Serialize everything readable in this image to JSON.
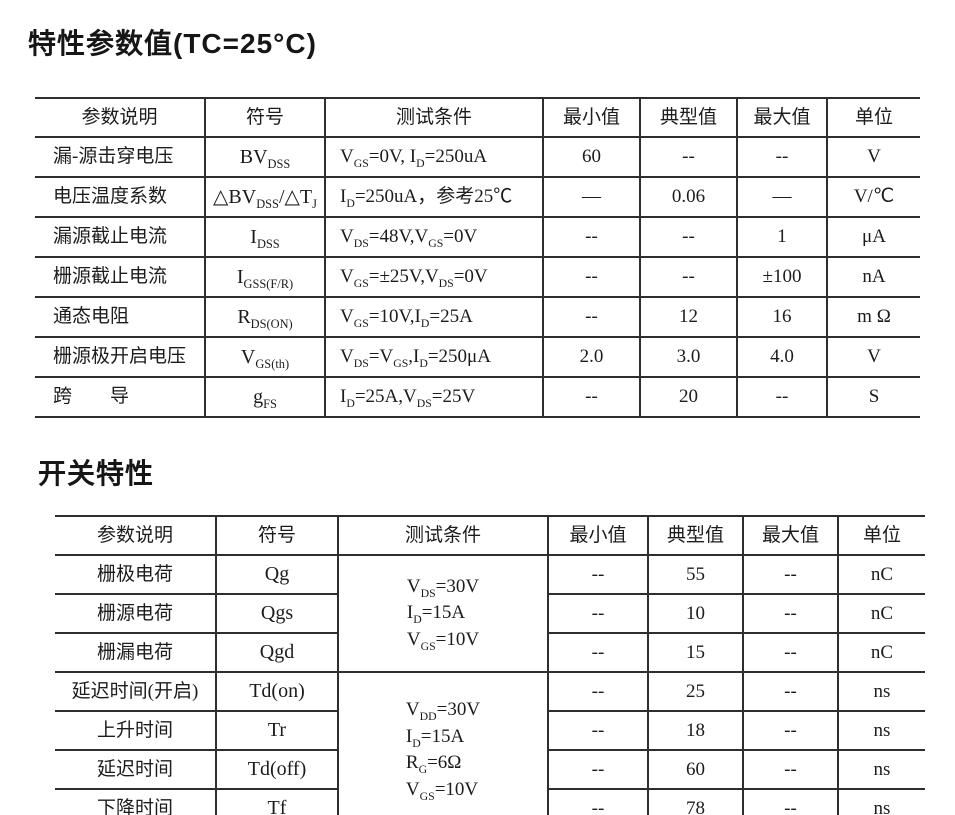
{
  "page": {
    "background": "#ffffff",
    "text_color": "#1c1c1c",
    "border_color": "#2e2e2e"
  },
  "tables": [
    {
      "id": "characteristics",
      "title": "特性参数值(TC=25°C)",
      "headers": [
        "参数说明",
        "符号",
        "测试条件",
        "最小值",
        "典型值",
        "最大值",
        "单位"
      ],
      "rows": [
        {
          "param": "漏-源击穿电压",
          "symbol": "BV~DSS~",
          "condition": "V~GS~=0V, I~D~=250uA",
          "condition_rowspan": 1,
          "min": "60",
          "typ": "--",
          "max": "--",
          "unit": "V"
        },
        {
          "param": "电压温度系数",
          "symbol": "△BV~DSS~/△T~J~",
          "condition": "I~D~=250uA，参考25℃",
          "condition_rowspan": 1,
          "min": "—",
          "typ": "0.06",
          "max": "—",
          "unit": "V/℃"
        },
        {
          "param": "漏源截止电流",
          "symbol": "I~DSS~",
          "condition": "V~DS~=48V,V~GS~=0V",
          "condition_rowspan": 1,
          "min": "--",
          "typ": "--",
          "max": "1",
          "unit": "μA"
        },
        {
          "param": "栅源截止电流",
          "symbol": "I~GSS(F/R)~",
          "condition": "V~GS~=±25V,V~DS~=0V",
          "condition_rowspan": 1,
          "min": "--",
          "typ": "--",
          "max": "±100",
          "unit": "nA"
        },
        {
          "param": "通态电阻",
          "symbol": "R~DS(ON)~",
          "condition": "V~GS~=10V,I~D~=25A",
          "condition_rowspan": 1,
          "min": "--",
          "typ": "12",
          "max": "16",
          "unit": "m Ω"
        },
        {
          "param": "栅源极开启电压",
          "symbol": "V~GS(th)~",
          "condition": "V~DS~=V~GS~,I~D~=250μA",
          "condition_rowspan": 1,
          "min": "2.0",
          "typ": "3.0",
          "max": "4.0",
          "unit": "V"
        },
        {
          "param": "跨　　导",
          "symbol": "g~FS~",
          "condition": "I~D~=25A,V~DS~=25V",
          "condition_rowspan": 1,
          "min": "--",
          "typ": "20",
          "max": "--",
          "unit": "S"
        }
      ]
    },
    {
      "id": "switching",
      "title": "开关特性",
      "headers": [
        "参数说明",
        "符号",
        "测试条件",
        "最小值",
        "典型值",
        "最大值",
        "单位"
      ],
      "rows": [
        {
          "param": "栅极电荷",
          "symbol": "Qg",
          "condition": "V~DS~=30V\nI~D~=15A\nV~GS~=10V",
          "condition_rowspan": 3,
          "min": "--",
          "typ": "55",
          "max": "--",
          "unit": "nC"
        },
        {
          "param": "栅源电荷",
          "symbol": "Qgs",
          "min": "--",
          "typ": "10",
          "max": "--",
          "unit": "nC"
        },
        {
          "param": "栅漏电荷",
          "symbol": "Qgd",
          "min": "--",
          "typ": "15",
          "max": "--",
          "unit": "nC"
        },
        {
          "param": "延迟时间(开启)",
          "symbol": "Td(on)",
          "condition": "V~DD~=30V\nI~D~=15A\nR~G~=6Ω\nV~GS~=10V",
          "condition_rowspan": 4,
          "min": "--",
          "typ": "25",
          "max": "--",
          "unit": "ns"
        },
        {
          "param": "上升时间",
          "symbol": "Tr",
          "min": "--",
          "typ": "18",
          "max": "--",
          "unit": "ns"
        },
        {
          "param": "延迟时间",
          "symbol": "Td(off)",
          "min": "--",
          "typ": "60",
          "max": "--",
          "unit": "ns"
        },
        {
          "param": "下降时间",
          "symbol": "Tf",
          "min": "--",
          "typ": "78",
          "max": "--",
          "unit": "ns"
        }
      ]
    }
  ]
}
